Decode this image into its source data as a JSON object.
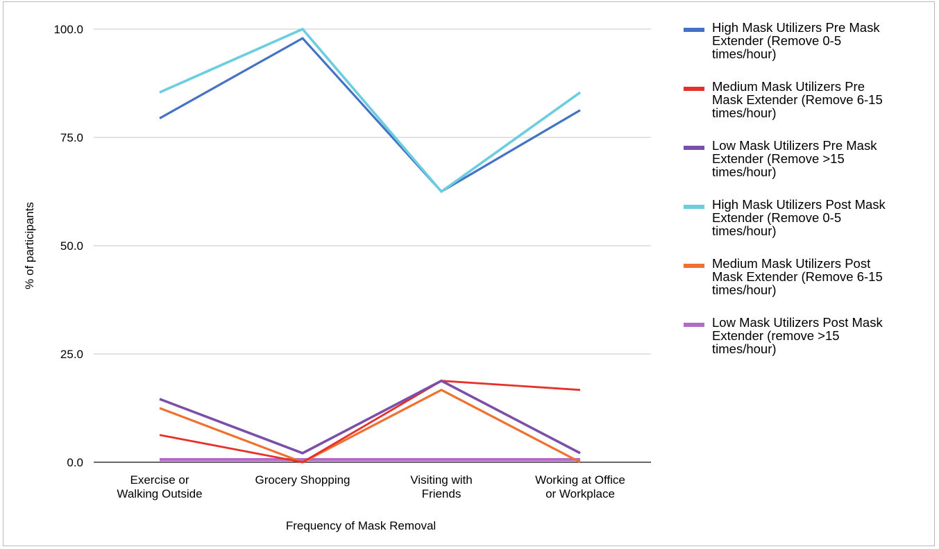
{
  "chart_data": {
    "type": "line",
    "title": "",
    "xlabel": "Frequency of Mask Removal",
    "ylabel": "% of participants",
    "ylim": [
      0,
      100
    ],
    "yticks": [
      "0.0",
      "25.0",
      "50.0",
      "75.0",
      "100.0"
    ],
    "grid": true,
    "legend_position": "right",
    "categories": [
      [
        "Exercise or",
        "Walking Outside"
      ],
      [
        "Grocery Shopping"
      ],
      [
        "Visiting with",
        "Friends"
      ],
      [
        "Working at Office",
        "or Workplace"
      ]
    ],
    "series": [
      {
        "name_lines": [
          "High Mask Utilizers Pre Mask",
          "Extender (Remove 0-5",
          "times/hour)"
        ],
        "color": "#4472c4",
        "values": [
          79.4,
          97.9,
          62.5,
          81.3
        ]
      },
      {
        "name_lines": [
          "Medium Mask Utilizers Pre",
          "Mask Extender (Remove 6-15",
          "times/hour)"
        ],
        "color": "#e8302a",
        "values": [
          6.3,
          0.0,
          18.8,
          16.7
        ]
      },
      {
        "name_lines": [
          "Low Mask Utilizers Pre Mask",
          "Extender (Remove >15",
          "times/hour)"
        ],
        "color": "#7b4fa8",
        "values": [
          14.6,
          2.1,
          18.8,
          2.1
        ]
      },
      {
        "name_lines": [
          "High Mask Utilizers Post Mask",
          "Extender (Remove 0-5",
          "times/hour)"
        ],
        "color": "#6dcde0",
        "values": [
          85.4,
          100.0,
          62.5,
          85.4
        ]
      },
      {
        "name_lines": [
          "Medium Mask Utilizers Post",
          "Mask Extender (Remove 6-15",
          "times/hour)"
        ],
        "color": "#f07030",
        "values": [
          12.5,
          0.0,
          16.7,
          0.0
        ]
      },
      {
        "name_lines": [
          "Low Mask Utilizers Post Mask",
          "Extender (remove >15",
          "times/hour)"
        ],
        "color": "#b36bc6",
        "values": [
          0.6,
          0.6,
          0.6,
          0.6
        ]
      }
    ]
  }
}
